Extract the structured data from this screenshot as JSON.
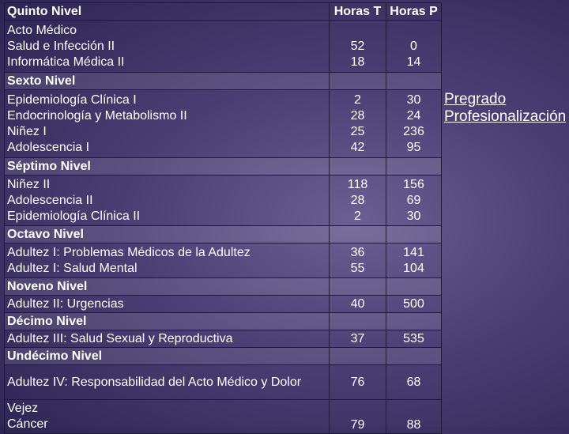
{
  "header": {
    "col1": "Quinto Nivel",
    "col2": "Horas T",
    "col3": "Horas P"
  },
  "top": [
    "Acto Médico",
    "Salud e Infección II",
    "Informática Médica II"
  ],
  "top_nums": {
    "t": [
      "52",
      "18"
    ],
    "p": [
      "0",
      "14"
    ]
  },
  "level6": "Sexto Nivel",
  "g6": [
    "Epidemiología Clínica I",
    "Endocrinología y Metabolismo II",
    "Niñez I",
    "Adolescencia I"
  ],
  "g6_nums": {
    "t": [
      "2",
      "28",
      "25",
      "42"
    ],
    "p": [
      "30",
      "24",
      "236",
      "95"
    ]
  },
  "level7": "Séptimo Nivel",
  "g7": [
    "Niñez II",
    "Adolescencia II",
    "Epidemiología Clínica II"
  ],
  "g7_nums": {
    "t": [
      "118",
      "28",
      "2"
    ],
    "p": [
      "156",
      "69",
      "30"
    ]
  },
  "level8": "Octavo Nivel",
  "g8": [
    "Adultez I: Problemas Médicos de la Adultez",
    "Adultez I: Salud Mental"
  ],
  "g8_nums": {
    "t": [
      "36",
      "55"
    ],
    "p": [
      "141",
      "104"
    ]
  },
  "level9": "Noveno Nivel",
  "g9": [
    "Adultez II: Urgencias"
  ],
  "g9_nums": {
    "t": [
      "40"
    ],
    "p": [
      "500"
    ]
  },
  "level10": "Décimo Nivel",
  "g10": [
    "Adultez III: Salud Sexual y Reproductiva"
  ],
  "g10_nums": {
    "t": [
      "37"
    ],
    "p": [
      "535"
    ]
  },
  "level11": "Undécimo Nivel",
  "g11": [
    "Adultez IV: Responsabilidad del Acto Médico y Dolor"
  ],
  "g11_nums": {
    "t": [
      "76"
    ],
    "p": [
      "68"
    ]
  },
  "g12": [
    "Vejez",
    "Cáncer"
  ],
  "g12_nums": {
    "t": [
      "79"
    ],
    "p": [
      "88"
    ]
  },
  "legend": [
    "Pregrado",
    "Profesionalización"
  ]
}
